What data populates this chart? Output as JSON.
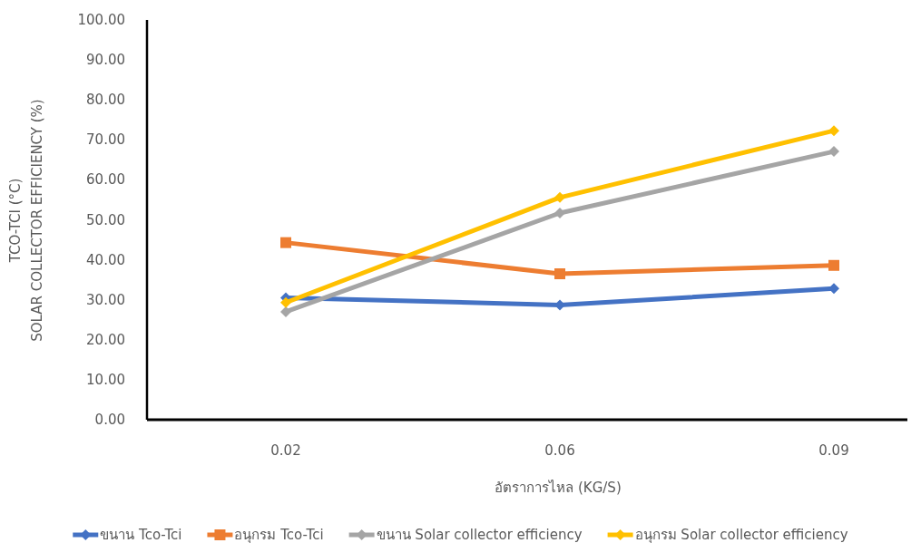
{
  "chart_data": {
    "type": "line",
    "xlabel": "อัตราการไหล (KG/S)",
    "ylabel": "TCO-TCI (°C)\nSOLAR COLLECTOR EFFICIENCY (%)",
    "categories": [
      "0.02",
      "0.06",
      "0.09"
    ],
    "series": [
      {
        "name": "ขนาน Tco-Tci",
        "color": "#4472c4",
        "marker": "diamond",
        "values": [
          30.5,
          28.7,
          32.8
        ]
      },
      {
        "name": "อนุกรม Tco-Tci",
        "color": "#ed7d31",
        "marker": "square",
        "values": [
          44.3,
          36.5,
          38.6
        ]
      },
      {
        "name": "ขนาน Solar collector efficiency",
        "color": "#a5a5a5",
        "marker": "diamond",
        "values": [
          27.0,
          51.7,
          67.1
        ]
      },
      {
        "name": "อนุกรม Solar collector efficiency",
        "color": "#ffc000",
        "marker": "diamond",
        "values": [
          29.3,
          55.6,
          72.3
        ]
      }
    ],
    "ylim": [
      0,
      100
    ],
    "yticks": [
      {
        "value": 0,
        "label": "0.00"
      },
      {
        "value": 10,
        "label": "10.00"
      },
      {
        "value": 20,
        "label": "20.00"
      },
      {
        "value": 30,
        "label": "30.00"
      },
      {
        "value": 40,
        "label": "40.00"
      },
      {
        "value": 50,
        "label": "50.00"
      },
      {
        "value": 60,
        "label": "60.00"
      },
      {
        "value": 70,
        "label": "70.00"
      },
      {
        "value": 80,
        "label": "80.00"
      },
      {
        "value": 90,
        "label": "90.00"
      },
      {
        "value": 100,
        "label": "100.00"
      }
    ],
    "grid": false,
    "legend": "bottom",
    "line_style": "solid"
  }
}
